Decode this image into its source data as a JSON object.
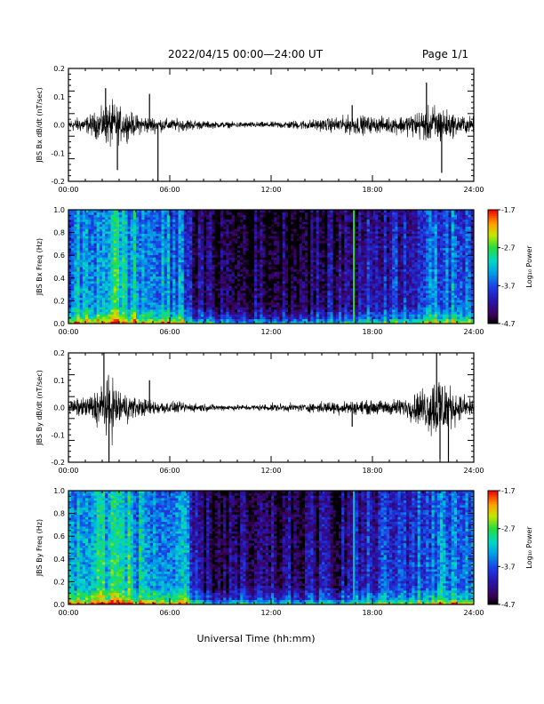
{
  "header": {
    "title": "2022/04/15  00:00—24:00 UT",
    "page": "Page 1/1"
  },
  "xlabel": "Universal Time (hh:mm)",
  "chart_data": [
    {
      "type": "line",
      "ylabel": "JBS Bx dB/dt (nT/sec)",
      "xlim": [
        0,
        24
      ],
      "ylim": [
        -0.2,
        0.2
      ],
      "x_ticks": [
        "00:00",
        "06:00",
        "12:00",
        "18:00",
        "24:00"
      ],
      "y_ticks": [
        "-0.2",
        "-0.1",
        "0.0",
        "0.1",
        "0.2"
      ],
      "y_tick_values": [
        -0.2,
        -0.1,
        0.0,
        0.1,
        0.2
      ],
      "series": [
        {
          "x": [
            0,
            1,
            2,
            2.5,
            3,
            4,
            5,
            6,
            7,
            8,
            9,
            10,
            11,
            12,
            13,
            14,
            15,
            16,
            17,
            18,
            19,
            20,
            21,
            21.5,
            22,
            22.5,
            23,
            24
          ],
          "amplitude": [
            0.03,
            0.04,
            0.08,
            0.12,
            0.09,
            0.05,
            0.04,
            0.03,
            0.03,
            0.02,
            0.015,
            0.015,
            0.015,
            0.015,
            0.02,
            0.025,
            0.03,
            0.04,
            0.05,
            0.04,
            0.04,
            0.05,
            0.08,
            0.1,
            0.1,
            0.07,
            0.05,
            0.04
          ]
        }
      ],
      "spikes": [
        {
          "x": 2.2,
          "y": 0.13
        },
        {
          "x": 2.9,
          "y": -0.16
        },
        {
          "x": 5.3,
          "y": -0.2
        },
        {
          "x": 4.8,
          "y": 0.11
        },
        {
          "x": 22.1,
          "y": -0.17
        },
        {
          "x": 21.2,
          "y": 0.15
        },
        {
          "x": 16.8,
          "y": 0.07
        }
      ]
    },
    {
      "type": "heatmap",
      "ylabel": "JBS Bx Freq (Hz)",
      "xlim": [
        0,
        24
      ],
      "ylim": [
        0,
        1
      ],
      "x_ticks": [
        "00:00",
        "06:00",
        "12:00",
        "18:00",
        "24:00"
      ],
      "y_ticks": [
        "0.0",
        "0.2",
        "0.4",
        "0.6",
        "0.8",
        "1.0"
      ],
      "y_tick_values": [
        0,
        0.2,
        0.4,
        0.6,
        0.8,
        1.0
      ],
      "x": [
        0,
        1,
        2,
        3,
        4,
        5,
        6,
        7,
        7.5,
        8,
        10,
        12,
        14,
        16,
        17,
        18,
        19,
        20,
        21,
        22,
        23,
        24
      ],
      "activity": [
        0.45,
        0.45,
        0.55,
        0.6,
        0.5,
        0.45,
        0.42,
        0.4,
        0.15,
        0.12,
        0.1,
        0.1,
        0.12,
        0.15,
        0.2,
        0.25,
        0.28,
        0.3,
        0.35,
        0.4,
        0.42,
        0.42
      ],
      "lines": [
        {
          "x": 16.9,
          "power": -2.7
        }
      ],
      "colorbar": {
        "label": "Log₁₀ Power",
        "min": -4.7,
        "max": -1.7,
        "ticks": [
          "-1.7",
          "-2.7",
          "-3.7",
          "-4.7"
        ],
        "tick_values": [
          -1.7,
          -2.7,
          -3.7,
          -4.7
        ]
      }
    },
    {
      "type": "line",
      "ylabel": "JBS By dB/dt (nT/sec)",
      "xlim": [
        0,
        24
      ],
      "ylim": [
        -0.2,
        0.2
      ],
      "x_ticks": [
        "00:00",
        "06:00",
        "12:00",
        "18:00",
        "24:00"
      ],
      "y_ticks": [
        "-0.2",
        "-0.1",
        "0.0",
        "0.1",
        "0.2"
      ],
      "y_tick_values": [
        -0.2,
        -0.1,
        0.0,
        0.1,
        0.2
      ],
      "series": [
        {
          "x": [
            0,
            1,
            2,
            2.5,
            3,
            4,
            5,
            6,
            7,
            8,
            9,
            10,
            11,
            12,
            13,
            14,
            15,
            16,
            17,
            18,
            19,
            20,
            21,
            21.5,
            22,
            22.5,
            23,
            24
          ],
          "amplitude": [
            0.04,
            0.05,
            0.12,
            0.16,
            0.1,
            0.05,
            0.04,
            0.03,
            0.025,
            0.02,
            0.015,
            0.015,
            0.015,
            0.02,
            0.02,
            0.02,
            0.03,
            0.035,
            0.035,
            0.035,
            0.04,
            0.05,
            0.1,
            0.15,
            0.2,
            0.12,
            0.07,
            0.05
          ]
        }
      ],
      "spikes": [
        {
          "x": 2.4,
          "y": -0.2
        },
        {
          "x": 2.1,
          "y": 0.2
        },
        {
          "x": 21.8,
          "y": 0.2
        },
        {
          "x": 22.5,
          "y": -0.2
        },
        {
          "x": 22.0,
          "y": -0.19
        },
        {
          "x": 4.8,
          "y": 0.1
        },
        {
          "x": 16.8,
          "y": -0.07
        }
      ]
    },
    {
      "type": "heatmap",
      "ylabel": "JBS By Freq (Hz)",
      "xlim": [
        0,
        24
      ],
      "ylim": [
        0,
        1
      ],
      "x_ticks": [
        "00:00",
        "06:00",
        "12:00",
        "18:00",
        "24:00"
      ],
      "y_ticks": [
        "0.0",
        "0.2",
        "0.4",
        "0.6",
        "0.8",
        "1.0"
      ],
      "y_tick_values": [
        0,
        0.2,
        0.4,
        0.6,
        0.8,
        1.0
      ],
      "x": [
        0,
        1,
        2,
        3,
        4,
        5,
        6,
        7,
        7.5,
        8,
        10,
        12,
        14,
        16,
        17,
        18,
        19,
        20,
        21,
        22,
        23,
        24
      ],
      "activity": [
        0.5,
        0.5,
        0.6,
        0.62,
        0.52,
        0.48,
        0.45,
        0.42,
        0.2,
        0.15,
        0.12,
        0.12,
        0.15,
        0.18,
        0.22,
        0.28,
        0.3,
        0.32,
        0.38,
        0.45,
        0.45,
        0.45
      ],
      "lines": [
        {
          "x": 16.9,
          "power": -3.2
        }
      ],
      "colorbar": {
        "label": "Log₁₀ Power",
        "min": -4.7,
        "max": -1.7,
        "ticks": [
          "-1.7",
          "-2.7",
          "-3.7",
          "-4.7"
        ],
        "tick_values": [
          -1.7,
          -2.7,
          -3.7,
          -4.7
        ]
      }
    }
  ]
}
